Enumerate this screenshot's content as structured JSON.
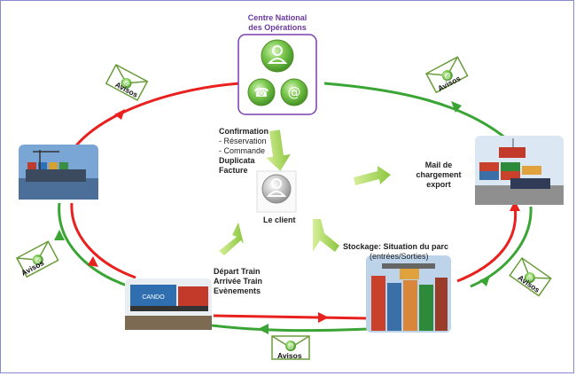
{
  "center": {
    "title_line1": "Centre National",
    "title_line2": "des Opérations",
    "icons": [
      "person-icon",
      "phone-icon",
      "at-sign-icon"
    ]
  },
  "client": {
    "label": "Le client",
    "icon": "person-icon"
  },
  "confirmation": {
    "title": "Confirmation",
    "line1": "- Réservation",
    "line2": "- Commande",
    "line3": "Duplicata",
    "line4": "Facture"
  },
  "mail": {
    "line1": "Mail de",
    "line2": "chargement",
    "line3": "export"
  },
  "stockage": {
    "title": "Stockage: Situation du parc",
    "sub": "(entrées/Sorties)"
  },
  "depart": {
    "line1": "Départ Train",
    "line2": "Arrivée Train",
    "line3": "Evènements"
  },
  "avisos": {
    "label": "Avisos"
  },
  "train": {
    "container_text": "CANDO"
  },
  "colors": {
    "red_arrow": "#e8211f",
    "green_arrow": "#3aa535",
    "frame_purple": "#7a3fb0",
    "icon_green": "#6cc04a"
  }
}
